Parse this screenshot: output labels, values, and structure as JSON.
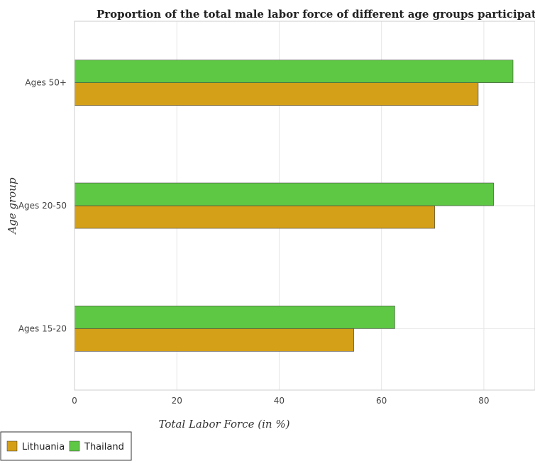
{
  "chart_data": {
    "type": "bar",
    "orientation": "horizontal",
    "title": "Proportion of the total male labor force of different age groups participating",
    "xlabel": "Total Labor Force (in %)",
    "ylabel": "Age group",
    "categories": [
      "Ages 15-20",
      "Ages 20-50",
      "Ages 50+"
    ],
    "series": [
      {
        "name": "Lithuania",
        "color": "#d4a017",
        "values": [
          54.6,
          70.4,
          78.9
        ]
      },
      {
        "name": "Thailand",
        "color": "#5ec744",
        "values": [
          62.6,
          81.9,
          85.7
        ]
      }
    ],
    "xlim": [
      0,
      90
    ],
    "xticks": [
      0,
      20,
      40,
      60,
      80
    ],
    "grid": true,
    "legend_position": "bottom-left"
  }
}
